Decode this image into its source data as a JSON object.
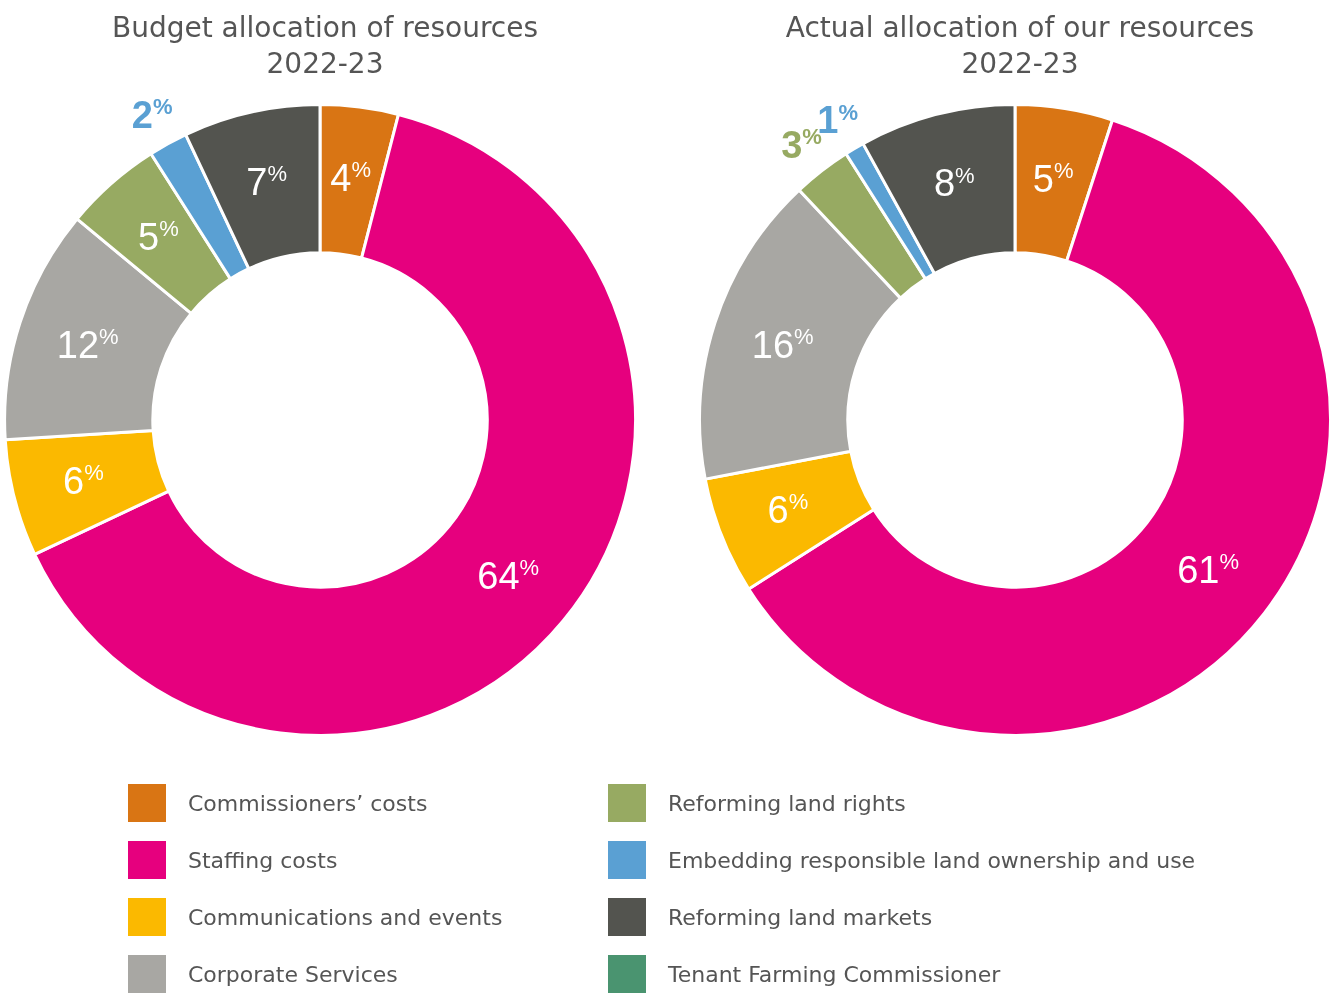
{
  "chart_data": {
    "type": "donut",
    "categories": [
      "Commissioners’ costs",
      "Staffing costs",
      "Communications and events",
      "Corporate Services",
      "Reforming land rights",
      "Embedding responsible land ownership and use",
      "Reforming land markets",
      "Tenant Farming Commissioner"
    ],
    "colors": [
      "#d97514",
      "#e6007e",
      "#fbb900",
      "#a8a7a3",
      "#97aa62",
      "#5aa0d3",
      "#53544f",
      "#4a9470"
    ],
    "series": [
      {
        "name": "Budget allocation of resources\n2022-23",
        "values": [
          4,
          64,
          6,
          12,
          5,
          2,
          7,
          null
        ],
        "value_labels": [
          "4$^{%}$",
          "64$^{%}$",
          "6$^{%}$",
          "12$^{%}$",
          "5$^{%}$",
          "2$^{%}$",
          "7$^{%}$",
          null
        ]
      },
      {
        "name": "Actual allocation of our resources\n2022-23",
        "values": [
          5,
          61,
          6,
          16,
          3,
          1,
          8,
          null
        ],
        "value_labels": [
          "5$^{%}$",
          "61$^{%}$",
          "6$^{%}$",
          "16$^{%}$",
          "3$^{%}$",
          "1$^{%}$",
          "8$^{%}$",
          null
        ]
      }
    ],
    "legend": "bottom"
  }
}
